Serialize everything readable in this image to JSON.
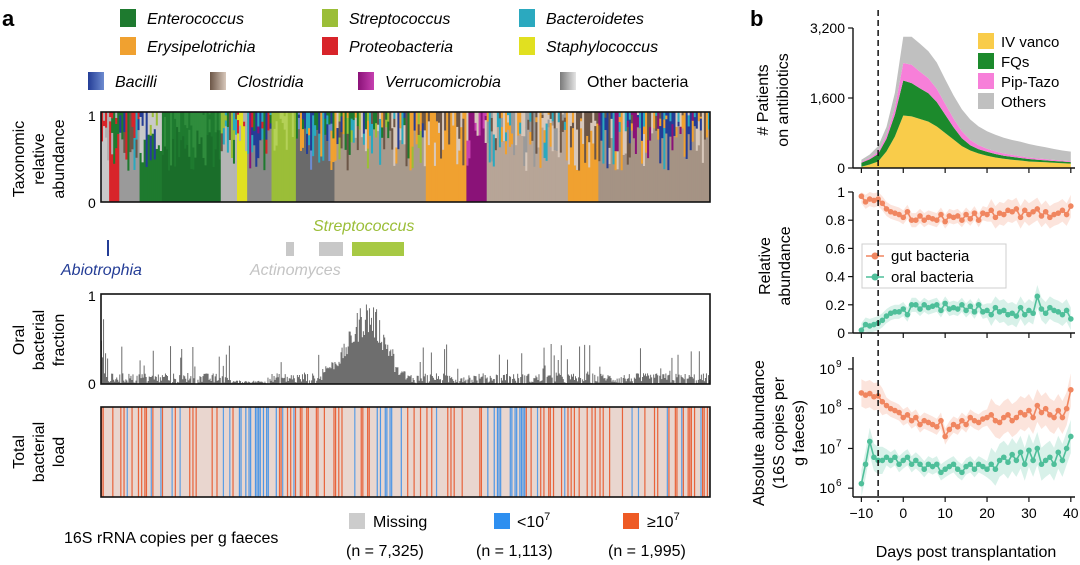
{
  "panel_a": {
    "label": "a",
    "legend": [
      {
        "name": "Enterococcus",
        "italic": true,
        "colors": [
          "#1e7a2f",
          "#1e7a2f"
        ]
      },
      {
        "name": "Streptococcus",
        "italic": true,
        "colors": [
          "#9bbe38",
          "#9bbe38"
        ]
      },
      {
        "name": "Bacteroidetes",
        "italic": true,
        "colors": [
          "#2ba9bf",
          "#2ba9bf"
        ]
      },
      {
        "name": "Erysipelotrichia",
        "italic": true,
        "colors": [
          "#f0a130",
          "#f0a130"
        ]
      },
      {
        "name": "Proteobacteria",
        "italic": true,
        "colors": [
          "#d8242a",
          "#d8242a"
        ]
      },
      {
        "name": "Staphylococcus",
        "italic": true,
        "colors": [
          "#e1e020",
          "#e1e020"
        ]
      },
      {
        "name": "Bacilli",
        "italic": true,
        "colors": [
          "#243d96",
          "#6d8bd0"
        ]
      },
      {
        "name": "Clostridia",
        "italic": true,
        "colors": [
          "#6c5647",
          "#d8c8bb"
        ]
      },
      {
        "name": "Verrucomicrobia",
        "italic": true,
        "colors": [
          "#8a1278",
          "#c640b0"
        ]
      },
      {
        "name": "Other bacteria",
        "italic": false,
        "colors": [
          "#7a7a7a",
          "#e4e4e4"
        ]
      }
    ],
    "taxonomic": {
      "ylabel_lines": [
        "Taxonomic",
        "relative",
        "abundance"
      ],
      "yticks": [
        "1",
        "0"
      ]
    },
    "annotations": {
      "streptococcus": "Streptococcus",
      "abiotrophia": "Abiotrophia",
      "actinomyces": "Actinomyces"
    },
    "oral": {
      "ylabel_lines": [
        "Oral",
        "bacterial",
        "fraction"
      ],
      "yticks": [
        "1",
        "0"
      ]
    },
    "load": {
      "ylabel_lines": [
        "Total",
        "bacterial",
        "load"
      ]
    },
    "load_legend": {
      "title": "16S rRNA copies per g faeces",
      "items": [
        {
          "label": "Missing",
          "n": "(n = 7,325)",
          "color": "#cccccc"
        },
        {
          "label": "<10",
          "sup": "7",
          "n": "(n = 1,113)",
          "color": "#2e8ff0"
        },
        {
          "label": "≥10",
          "sup": "7",
          "n": "(n = 1,995)",
          "color": "#ee5a24"
        }
      ]
    }
  },
  "panel_b": {
    "label": "b",
    "xlabel": "Days post transplantation",
    "xticks": [
      "−10",
      "0",
      "10",
      "20",
      "30",
      "40"
    ],
    "dashed_line_day": -6,
    "colors": {
      "gut": "#f08660",
      "oral": "#4fbf9a"
    },
    "chart_data": [
      {
        "type": "area",
        "title": "",
        "ylabel_lines": [
          "# Patients",
          "on antibiotics"
        ],
        "ylim": [
          0,
          3200
        ],
        "yticks": [
          "0",
          "1,600",
          "3,200"
        ],
        "x": [
          -10,
          -8,
          -6,
          -4,
          -2,
          0,
          2,
          4,
          6,
          8,
          10,
          12,
          14,
          16,
          18,
          20,
          22,
          24,
          26,
          28,
          30,
          32,
          34,
          36,
          38,
          40
        ],
        "series": [
          {
            "name": "IV vanco",
            "color": "#f9cc4a",
            "values": [
              30,
              80,
              150,
              380,
              720,
              1200,
              1180,
              1120,
              1060,
              950,
              800,
              650,
              500,
              400,
              330,
              280,
              240,
              210,
              190,
              170,
              150,
              140,
              130,
              120,
              110,
              100
            ]
          },
          {
            "name": "FQs",
            "color": "#1c8a2c",
            "values": [
              90,
              120,
              170,
              290,
              500,
              800,
              760,
              700,
              650,
              560,
              420,
              280,
              180,
              120,
              100,
              90,
              80,
              70,
              65,
              60,
              55,
              50,
              45,
              40,
              38,
              35
            ]
          },
          {
            "name": "Pip-Tazo",
            "color": "#f77fd9",
            "values": [
              20,
              30,
              50,
              90,
              160,
              400,
              420,
              380,
              340,
              300,
              250,
              200,
              160,
              120,
              90,
              70,
              60,
              50,
              45,
              40,
              35,
              30,
              28,
              25,
              22,
              20
            ]
          },
          {
            "name": "Others",
            "color": "#c0c0c0",
            "values": [
              50,
              80,
              130,
              180,
              340,
              600,
              640,
              640,
              620,
              600,
              560,
              530,
              500,
              470,
              430,
              400,
              380,
              360,
              340,
              330,
              310,
              290,
              270,
              250,
              230,
              220
            ]
          }
        ]
      },
      {
        "type": "line",
        "title": "",
        "ylabel_lines": [
          "Relative",
          "abundance"
        ],
        "ylim": [
          0,
          1
        ],
        "yticks": [
          "0",
          "0.2",
          "0.4",
          "0.6",
          "0.8",
          "1"
        ],
        "x": [
          -10,
          -9,
          -8,
          -7,
          -6,
          -5,
          -4,
          -3,
          -2,
          -1,
          0,
          1,
          2,
          3,
          4,
          5,
          6,
          7,
          8,
          9,
          10,
          11,
          12,
          13,
          14,
          15,
          16,
          17,
          18,
          19,
          20,
          21,
          22,
          23,
          24,
          25,
          26,
          27,
          28,
          29,
          30,
          31,
          32,
          33,
          34,
          35,
          36,
          37,
          38,
          39,
          40
        ],
        "series": [
          {
            "name": "gut bacteria",
            "color": "#f08660",
            "values": [
              0.97,
              0.93,
              0.95,
              0.94,
              0.95,
              0.92,
              0.88,
              0.86,
              0.85,
              0.84,
              0.82,
              0.86,
              0.8,
              0.8,
              0.83,
              0.8,
              0.82,
              0.81,
              0.8,
              0.84,
              0.79,
              0.83,
              0.82,
              0.83,
              0.8,
              0.84,
              0.81,
              0.85,
              0.8,
              0.85,
              0.84,
              0.87,
              0.82,
              0.85,
              0.84,
              0.87,
              0.86,
              0.88,
              0.82,
              0.87,
              0.84,
              0.86,
              0.88,
              0.83,
              0.86,
              0.82,
              0.84,
              0.85,
              0.87,
              0.84,
              0.9
            ]
          },
          {
            "name": "oral bacteria",
            "color": "#4fbf9a",
            "values": [
              0.02,
              0.06,
              0.05,
              0.06,
              0.07,
              0.09,
              0.12,
              0.14,
              0.15,
              0.15,
              0.17,
              0.13,
              0.2,
              0.2,
              0.17,
              0.2,
              0.18,
              0.19,
              0.2,
              0.16,
              0.21,
              0.17,
              0.18,
              0.17,
              0.2,
              0.16,
              0.19,
              0.15,
              0.2,
              0.15,
              0.16,
              0.13,
              0.18,
              0.15,
              0.16,
              0.13,
              0.14,
              0.12,
              0.18,
              0.13,
              0.16,
              0.14,
              0.26,
              0.17,
              0.14,
              0.18,
              0.16,
              0.15,
              0.13,
              0.16,
              0.1
            ]
          }
        ]
      },
      {
        "type": "line",
        "title": "",
        "ylabel_lines": [
          "Absolute abundance",
          "(16S copies per",
          "g faeces)"
        ],
        "yscale": "log",
        "ylim": [
          600000,
          2000000000
        ],
        "yticks": [
          {
            "base": "10",
            "exp": "6"
          },
          {
            "base": "10",
            "exp": "7"
          },
          {
            "base": "10",
            "exp": "8"
          },
          {
            "base": "10",
            "exp": "9"
          }
        ],
        "x": [
          -10,
          -9,
          -8,
          -7,
          -6,
          -5,
          -4,
          -3,
          -2,
          -1,
          0,
          1,
          2,
          3,
          4,
          5,
          6,
          7,
          8,
          9,
          10,
          11,
          12,
          13,
          14,
          15,
          16,
          17,
          18,
          19,
          20,
          21,
          22,
          23,
          24,
          25,
          26,
          27,
          28,
          29,
          30,
          31,
          32,
          33,
          34,
          35,
          36,
          37,
          38,
          39,
          40
        ],
        "series": [
          {
            "name": "gut bacteria",
            "color": "#f08660",
            "values": [
              250000000,
              220000000,
              240000000,
              200000000,
              210000000,
              150000000,
              120000000,
              100000000,
              90000000,
              80000000,
              60000000,
              70000000,
              50000000,
              60000000,
              40000000,
              50000000,
              45000000,
              40000000,
              35000000,
              50000000,
              20000000,
              30000000,
              40000000,
              35000000,
              50000000,
              40000000,
              60000000,
              50000000,
              45000000,
              55000000,
              60000000,
              70000000,
              50000000,
              45000000,
              60000000,
              70000000,
              50000000,
              60000000,
              80000000,
              70000000,
              90000000,
              60000000,
              120000000,
              80000000,
              100000000,
              70000000,
              60000000,
              90000000,
              60000000,
              100000000,
              300000000
            ]
          },
          {
            "name": "oral bacteria",
            "color": "#4fbf9a",
            "values": [
              1300000,
              4000000,
              15000000,
              6000000,
              5000000,
              5000000,
              6000000,
              5000000,
              6000000,
              4000000,
              5000000,
              6000000,
              4000000,
              5000000,
              4000000,
              3000000,
              4000000,
              3500000,
              4000000,
              2500000,
              3000000,
              3500000,
              4000000,
              3000000,
              2500000,
              3500000,
              4000000,
              3000000,
              4000000,
              3500000,
              3000000,
              4000000,
              3000000,
              5000000,
              6000000,
              4500000,
              7000000,
              5000000,
              8000000,
              4000000,
              9000000,
              5000000,
              10000000,
              4000000,
              5000000,
              6000000,
              4000000,
              8000000,
              5000000,
              10000000,
              20000000
            ]
          }
        ]
      }
    ]
  }
}
